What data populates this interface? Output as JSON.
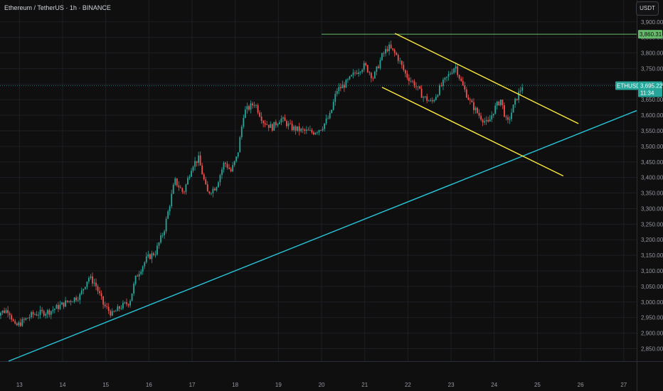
{
  "header": {
    "symbol": "Ethereum / TetherUS · 1h · BINANCE"
  },
  "currency_button": "USDT",
  "colors": {
    "up": "#26a69a",
    "down": "#ef5350",
    "channel": "#ffeb3b",
    "trendline": "#26c6da",
    "resistance": "#66bb6a",
    "bg": "#0f0f0f"
  },
  "tags": {
    "resistance_price": "3,860.31",
    "symbol_tag": "ETHUSDT",
    "last_price": "3,695.22",
    "countdown": "11:34"
  },
  "chart_data": {
    "type": "candlestick",
    "title": "",
    "y_ticks": [
      "3,900.00",
      "3,850.00",
      "3,800.00",
      "3,750.00",
      "3,700.00",
      "3,650.00",
      "3,600.00",
      "3,550.00",
      "3,500.00",
      "3,450.00",
      "3,400.00",
      "3,350.00",
      "3,300.00",
      "3,250.00",
      "3,200.00",
      "3,150.00",
      "3,100.00",
      "3,050.00",
      "3,000.00",
      "2,950.00",
      "2,900.00",
      "2,850.00"
    ],
    "x_ticks": [
      "13",
      "14",
      "15",
      "16",
      "17",
      "18",
      "19",
      "20",
      "21",
      "22",
      "23",
      "24",
      "25",
      "26",
      "27"
    ],
    "ylim": [
      2810,
      3920
    ],
    "xlim": [
      12.55,
      27.3
    ],
    "close_path": [
      [
        12.4,
        2960
      ],
      [
        12.75,
        2975
      ],
      [
        12.9,
        2920
      ],
      [
        13.3,
        2960
      ],
      [
        13.7,
        2970
      ],
      [
        13.9,
        2985
      ],
      [
        14.1,
        3000
      ],
      [
        14.4,
        3020
      ],
      [
        14.6,
        3080
      ],
      [
        14.75,
        3060
      ],
      [
        14.95,
        2990
      ],
      [
        15.15,
        2960
      ],
      [
        15.35,
        2985
      ],
      [
        15.55,
        3000
      ],
      [
        15.7,
        3080
      ],
      [
        15.95,
        3140
      ],
      [
        16.15,
        3160
      ],
      [
        16.35,
        3230
      ],
      [
        16.6,
        3390
      ],
      [
        16.8,
        3350
      ],
      [
        17.0,
        3440
      ],
      [
        17.15,
        3460
      ],
      [
        17.35,
        3350
      ],
      [
        17.55,
        3370
      ],
      [
        17.75,
        3450
      ],
      [
        17.9,
        3420
      ],
      [
        18.05,
        3470
      ],
      [
        18.2,
        3610
      ],
      [
        18.45,
        3640
      ],
      [
        18.65,
        3580
      ],
      [
        18.85,
        3560
      ],
      [
        19.05,
        3590
      ],
      [
        19.3,
        3560
      ],
      [
        19.55,
        3550
      ],
      [
        19.8,
        3545
      ],
      [
        20.0,
        3560
      ],
      [
        20.2,
        3600
      ],
      [
        20.35,
        3680
      ],
      [
        20.55,
        3700
      ],
      [
        20.8,
        3740
      ],
      [
        21.0,
        3760
      ],
      [
        21.2,
        3720
      ],
      [
        21.4,
        3790
      ],
      [
        21.55,
        3820
      ],
      [
        21.75,
        3790
      ],
      [
        21.95,
        3730
      ],
      [
        22.15,
        3700
      ],
      [
        22.35,
        3660
      ],
      [
        22.55,
        3640
      ],
      [
        22.75,
        3690
      ],
      [
        22.95,
        3730
      ],
      [
        23.1,
        3760
      ],
      [
        23.25,
        3700
      ],
      [
        23.45,
        3640
      ],
      [
        23.65,
        3600
      ],
      [
        23.85,
        3570
      ],
      [
        24.0,
        3620
      ],
      [
        24.15,
        3650
      ],
      [
        24.3,
        3570
      ],
      [
        24.5,
        3650
      ],
      [
        24.65,
        3695
      ]
    ],
    "series": [
      {
        "name": "",
        "values": "close_path"
      }
    ],
    "annotations": {
      "resistance": {
        "price": 3860.31,
        "x_from": 20.0
      },
      "trendline": {
        "from": [
          12.75,
          2810
        ],
        "to": [
          27.3,
          3615
        ]
      },
      "channel_upper": {
        "from": [
          21.7,
          3863
        ],
        "to": [
          25.95,
          3573
        ]
      },
      "channel_lower": {
        "from": [
          21.4,
          3690
        ],
        "to": [
          25.6,
          3405
        ]
      }
    },
    "grid": true
  }
}
